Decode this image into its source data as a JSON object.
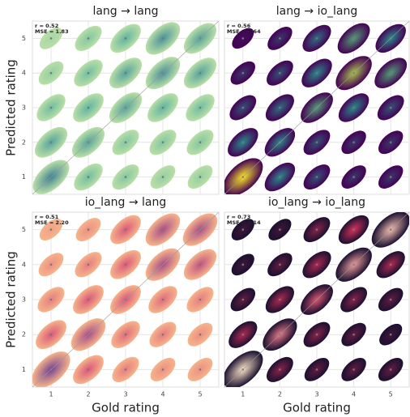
{
  "chart_data": [
    {
      "type": "kde",
      "title": "lang → lang",
      "annotation": [
        "r = 0.52",
        "MSE = 1.83"
      ],
      "ylabel": "Predicted rating",
      "xlim": [
        0.5,
        5.5
      ],
      "ylim": [
        0.5,
        5.5
      ],
      "xticks": [
        1,
        2,
        3,
        4,
        5
      ],
      "yticks": [
        1,
        2,
        3,
        4,
        5
      ],
      "xtick_labels": false,
      "ytick_labels": true,
      "grid": true,
      "colormap": [
        "#b9dfa6",
        "#5fb3a0",
        "#2b5f8e"
      ],
      "density": [
        [
          0.8,
          0.4,
          0.3,
          0.2,
          0.2
        ],
        [
          0.6,
          0.6,
          0.3,
          0.3,
          0.3
        ],
        [
          0.4,
          0.5,
          0.6,
          0.5,
          0.4
        ],
        [
          0.2,
          0.4,
          0.6,
          0.7,
          0.6
        ],
        [
          0.1,
          0.3,
          0.5,
          0.7,
          0.6
        ]
      ]
    },
    {
      "type": "kde",
      "title": "lang → io_lang",
      "annotation": [
        "r = 0.56",
        "MSE = 1.64"
      ],
      "xlim": [
        0.5,
        5.5
      ],
      "ylim": [
        0.5,
        5.5
      ],
      "xticks": [
        1,
        2,
        3,
        4,
        5
      ],
      "yticks": [
        1,
        2,
        3,
        4,
        5
      ],
      "xtick_labels": false,
      "ytick_labels": false,
      "grid": true,
      "colormap": [
        "#440154",
        "#2a8c8c",
        "#fde725"
      ],
      "density": [
        [
          1,
          0.5,
          0.3,
          0.2,
          0.2
        ],
        [
          0.5,
          0.5,
          0.3,
          0.2,
          0.2
        ],
        [
          0.3,
          0.4,
          0.6,
          0.5,
          0.3
        ],
        [
          0.2,
          0.3,
          0.5,
          0.8,
          0.6
        ],
        [
          0.05,
          0.2,
          0.4,
          0.6,
          0.5
        ]
      ]
    },
    {
      "type": "kde",
      "title": "io_lang → lang",
      "annotation": [
        "r = 0.51",
        "MSE = 2.20"
      ],
      "ylabel": "Predicted rating",
      "xlabel": "Gold rating",
      "xlim": [
        0.5,
        5.5
      ],
      "ylim": [
        0.5,
        5.5
      ],
      "xticks": [
        1,
        2,
        3,
        4,
        5
      ],
      "yticks": [
        1,
        2,
        3,
        4,
        5
      ],
      "xtick_labels": true,
      "ytick_labels": true,
      "grid": true,
      "colormap": [
        "#f6b48a",
        "#d9577a",
        "#5c3d99"
      ],
      "density": [
        [
          0.9,
          0.5,
          0.3,
          0.2,
          0.2
        ],
        [
          0.5,
          0.7,
          0.4,
          0.3,
          0.2
        ],
        [
          0.3,
          0.5,
          0.5,
          0.4,
          0.3
        ],
        [
          0.2,
          0.3,
          0.5,
          0.7,
          0.6
        ],
        [
          0.1,
          0.2,
          0.5,
          0.7,
          0.7
        ]
      ]
    },
    {
      "type": "kde",
      "title": "io_lang → io_lang",
      "annotation": [
        "r = 0.73",
        "MSE = 1.14"
      ],
      "xlabel": "Gold rating",
      "xlim": [
        0.5,
        5.5
      ],
      "ylim": [
        0.5,
        5.5
      ],
      "xticks": [
        1,
        2,
        3,
        4,
        5
      ],
      "yticks": [
        1,
        2,
        3,
        4,
        5
      ],
      "xtick_labels": true,
      "ytick_labels": false,
      "grid": true,
      "colormap": [
        "#1a1030",
        "#d8315b",
        "#fbe3c6"
      ],
      "density": [
        [
          1,
          0.3,
          0.2,
          0.2,
          0.2
        ],
        [
          0.4,
          0.7,
          0.3,
          0.2,
          0.1
        ],
        [
          0.2,
          0.4,
          0.6,
          0.3,
          0.2
        ],
        [
          0.1,
          0.2,
          0.4,
          0.8,
          0.4
        ],
        [
          0.1,
          0.1,
          0.3,
          0.5,
          0.9
        ]
      ]
    }
  ]
}
